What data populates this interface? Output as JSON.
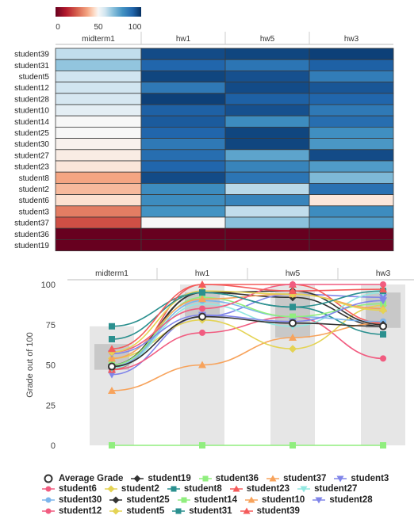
{
  "colorbar": {
    "min_label": "0",
    "mid_label": "50",
    "max_label": "100"
  },
  "chart_data": [
    {
      "type": "heatmap",
      "columns": [
        "midterm1",
        "hw1",
        "hw5",
        "hw3"
      ],
      "rows": [
        "student39",
        "student31",
        "student5",
        "student12",
        "student28",
        "student10",
        "student14",
        "student25",
        "student30",
        "student27",
        "student23",
        "student8",
        "student2",
        "student6",
        "student3",
        "student37",
        "student36",
        "student19"
      ],
      "values": [
        [
          60,
          95,
          96,
          97
        ],
        [
          66,
          90,
          86,
          91
        ],
        [
          58,
          96,
          94,
          84
        ],
        [
          58,
          85,
          95,
          93
        ],
        [
          57,
          97,
          91,
          90
        ],
        [
          54,
          91,
          94,
          85
        ],
        [
          50,
          92,
          80,
          88
        ],
        [
          50,
          90,
          96,
          79
        ],
        [
          49,
          85,
          96,
          77
        ],
        [
          48,
          88,
          74,
          95
        ],
        [
          47,
          90,
          82,
          76
        ],
        [
          37,
          95,
          86,
          69
        ],
        [
          40,
          80,
          61,
          87
        ],
        [
          46,
          80,
          82,
          47
        ],
        [
          30,
          78,
          60,
          80
        ],
        [
          22,
          50,
          67,
          76
        ],
        [
          0,
          0,
          0,
          0
        ],
        [
          0,
          0,
          0,
          0
        ]
      ],
      "colorscale_range": [
        0,
        100
      ]
    },
    {
      "type": "line",
      "categories": [
        "midterm1",
        "hw1",
        "hw5",
        "hw3"
      ],
      "ylabel": "Grade out of 100",
      "ylim": [
        0,
        100
      ],
      "yticks": [
        0,
        25,
        50,
        75,
        100
      ],
      "series": [
        {
          "name": "Average Grade",
          "color": "#333333",
          "marker": "ring",
          "values": [
            49,
            80,
            76,
            74
          ]
        },
        {
          "name": "student19",
          "color": "#333333",
          "marker": "diamond",
          "values": [
            48,
            95,
            92,
            74
          ]
        },
        {
          "name": "student36",
          "color": "#90ee7e",
          "marker": "square",
          "values": [
            0,
            0,
            0,
            0
          ]
        },
        {
          "name": "student37",
          "color": "#f7a35c",
          "marker": "triangle",
          "values": [
            34,
            50,
            67,
            76
          ]
        },
        {
          "name": "student3",
          "color": "#8085e9",
          "marker": "triangle-down",
          "values": [
            44,
            80,
            94,
            92
          ]
        },
        {
          "name": "student6",
          "color": "#f15c80",
          "marker": "circle",
          "values": [
            47,
            70,
            80,
            54
          ]
        },
        {
          "name": "student2",
          "color": "#e4d354",
          "marker": "diamond",
          "values": [
            54,
            78,
            60,
            87
          ]
        },
        {
          "name": "student8",
          "color": "#2b908f",
          "marker": "square",
          "values": [
            74,
            95,
            86,
            69
          ]
        },
        {
          "name": "student23",
          "color": "#f45b5b",
          "marker": "triangle",
          "values": [
            47,
            100,
            100,
            76
          ]
        },
        {
          "name": "student27",
          "color": "#91e8e1",
          "marker": "triangle-down",
          "values": [
            48,
            88,
            74,
            95
          ]
        },
        {
          "name": "student30",
          "color": "#7cb5ec",
          "marker": "circle",
          "values": [
            49,
            90,
            80,
            77
          ]
        },
        {
          "name": "student25",
          "color": "#333333",
          "marker": "diamond",
          "values": [
            50,
            95,
            96,
            75
          ]
        },
        {
          "name": "student14",
          "color": "#90ee7e",
          "marker": "square",
          "values": [
            50,
            92,
            80,
            88
          ]
        },
        {
          "name": "student10",
          "color": "#f7a35c",
          "marker": "triangle",
          "values": [
            54,
            91,
            94,
            85
          ]
        },
        {
          "name": "student28",
          "color": "#8085e9",
          "marker": "triangle-down",
          "values": [
            57,
            81,
            77,
            90
          ]
        },
        {
          "name": "student12",
          "color": "#f15c80",
          "marker": "circle",
          "values": [
            58,
            85,
            100,
            100
          ]
        },
        {
          "name": "student5",
          "color": "#e4d354",
          "marker": "diamond",
          "values": [
            58,
            96,
            94,
            84
          ]
        },
        {
          "name": "student31",
          "color": "#2b908f",
          "marker": "square",
          "values": [
            66,
            95,
            86,
            96
          ]
        },
        {
          "name": "student39",
          "color": "#f45b5b",
          "marker": "triangle",
          "values": [
            60,
            100,
            96,
            97
          ]
        }
      ],
      "boxes": [
        {
          "min": 0,
          "q1": 47,
          "median": 49,
          "q3": 63,
          "max": 74
        },
        {
          "min": 0,
          "q1": 80,
          "median": 91,
          "q3": 95,
          "max": 100
        },
        {
          "min": 0,
          "q1": 67,
          "median": 86,
          "q3": 95,
          "max": 100
        },
        {
          "min": 0,
          "q1": 73,
          "median": 85,
          "q3": 95,
          "max": 100
        }
      ]
    }
  ],
  "legend_rows": [
    [
      0,
      1,
      2,
      3,
      4
    ],
    [
      5,
      6,
      7,
      8,
      9
    ],
    [
      10,
      11,
      12,
      13,
      14
    ],
    [
      15,
      16,
      17,
      18
    ]
  ]
}
